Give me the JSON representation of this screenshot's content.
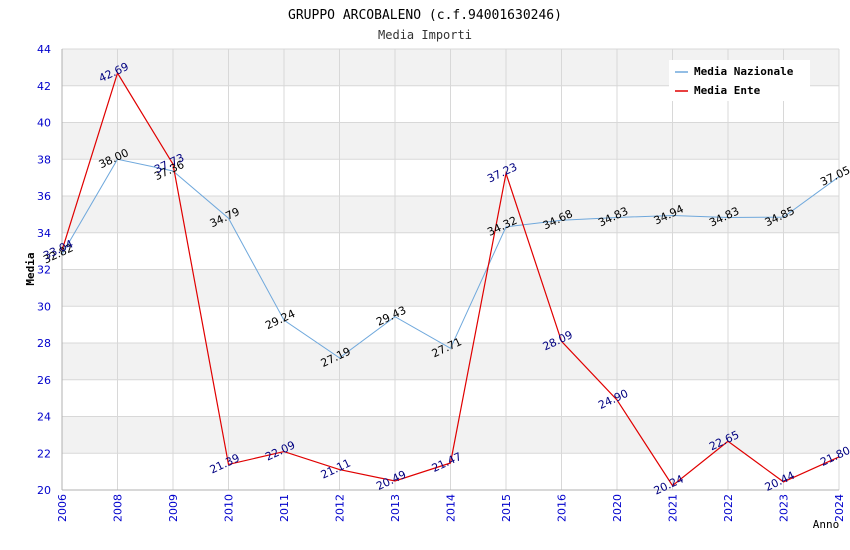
{
  "chart_data": {
    "type": "line",
    "title": "GRUPPO ARCOBALENO (c.f.94001630246)",
    "subtitle": "Media Importi",
    "xlabel": "Anno",
    "ylabel": "Media",
    "ylim": [
      20,
      44
    ],
    "ytick_step": 2,
    "grid": true,
    "legend_position": "top-right",
    "categories": [
      "2006",
      "2008",
      "2009",
      "2010",
      "2011",
      "2012",
      "2013",
      "2014",
      "2015",
      "2016",
      "2020",
      "2021",
      "2022",
      "2023",
      "2024"
    ],
    "series": [
      {
        "name": "Media Nazionale",
        "color": "#6fa8dc",
        "label_color": "#000000",
        "labels": [
          "32.82",
          "38.00",
          "37.36",
          "34.79",
          "29.24",
          "27.19",
          "29.43",
          "27.71",
          "34.32",
          "34.68",
          "34.83",
          "34.94",
          "34.83",
          "34.85",
          "37.05"
        ],
        "values": [
          32.82,
          38.0,
          37.36,
          34.79,
          29.24,
          27.19,
          29.43,
          27.71,
          34.32,
          34.68,
          34.83,
          34.94,
          34.83,
          34.85,
          37.05
        ]
      },
      {
        "name": "Media Ente",
        "color": "#e00000",
        "label_color": "#000080",
        "labels": [
          "33.04",
          "42.69",
          "37.73",
          "21.39",
          "22.09",
          "21.11",
          "20.49",
          "21.47",
          "37.23",
          "28.09",
          "24.90",
          "20.24",
          "22.65",
          "20.44",
          "21.80"
        ],
        "values": [
          33.04,
          42.69,
          37.73,
          21.39,
          22.09,
          21.11,
          20.49,
          21.47,
          37.23,
          28.09,
          24.9,
          20.24,
          22.65,
          20.44,
          21.8
        ]
      }
    ],
    "colors": {
      "axis_tick_text": "#0000cc",
      "band": "#f2f2f2",
      "grid": "#d8d8d8",
      "title": "#000000",
      "subtitle": "#333333"
    }
  }
}
